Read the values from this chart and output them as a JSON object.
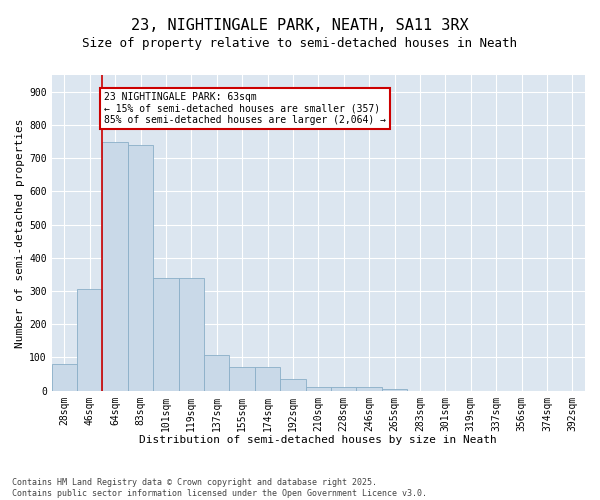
{
  "title_line1": "23, NIGHTINGALE PARK, NEATH, SA11 3RX",
  "title_line2": "Size of property relative to semi-detached houses in Neath",
  "xlabel": "Distribution of semi-detached houses by size in Neath",
  "ylabel": "Number of semi-detached properties",
  "categories": [
    "28sqm",
    "46sqm",
    "64sqm",
    "83sqm",
    "101sqm",
    "119sqm",
    "137sqm",
    "155sqm",
    "174sqm",
    "192sqm",
    "210sqm",
    "228sqm",
    "246sqm",
    "265sqm",
    "283sqm",
    "301sqm",
    "319sqm",
    "337sqm",
    "356sqm",
    "374sqm",
    "392sqm"
  ],
  "values": [
    80,
    305,
    748,
    738,
    340,
    340,
    107,
    70,
    70,
    35,
    12,
    10,
    10,
    5,
    0,
    0,
    0,
    0,
    0,
    0,
    0
  ],
  "bar_color": "#c9d9e8",
  "bar_edge_color": "#8aafc8",
  "highlight_line_color": "#cc0000",
  "annotation_text": "23 NIGHTINGALE PARK: 63sqm\n← 15% of semi-detached houses are smaller (357)\n85% of semi-detached houses are larger (2,064) →",
  "annotation_box_color": "#ffffff",
  "annotation_box_edge_color": "#cc0000",
  "ylim": [
    0,
    950
  ],
  "yticks": [
    0,
    100,
    200,
    300,
    400,
    500,
    600,
    700,
    800,
    900
  ],
  "background_color": "#dce6f0",
  "grid_color": "#ffffff",
  "fig_background": "#ffffff",
  "footnote": "Contains HM Land Registry data © Crown copyright and database right 2025.\nContains public sector information licensed under the Open Government Licence v3.0.",
  "title_fontsize": 11,
  "subtitle_fontsize": 9,
  "axis_label_fontsize": 8,
  "tick_fontsize": 7,
  "annotation_fontsize": 7,
  "footnote_fontsize": 6
}
